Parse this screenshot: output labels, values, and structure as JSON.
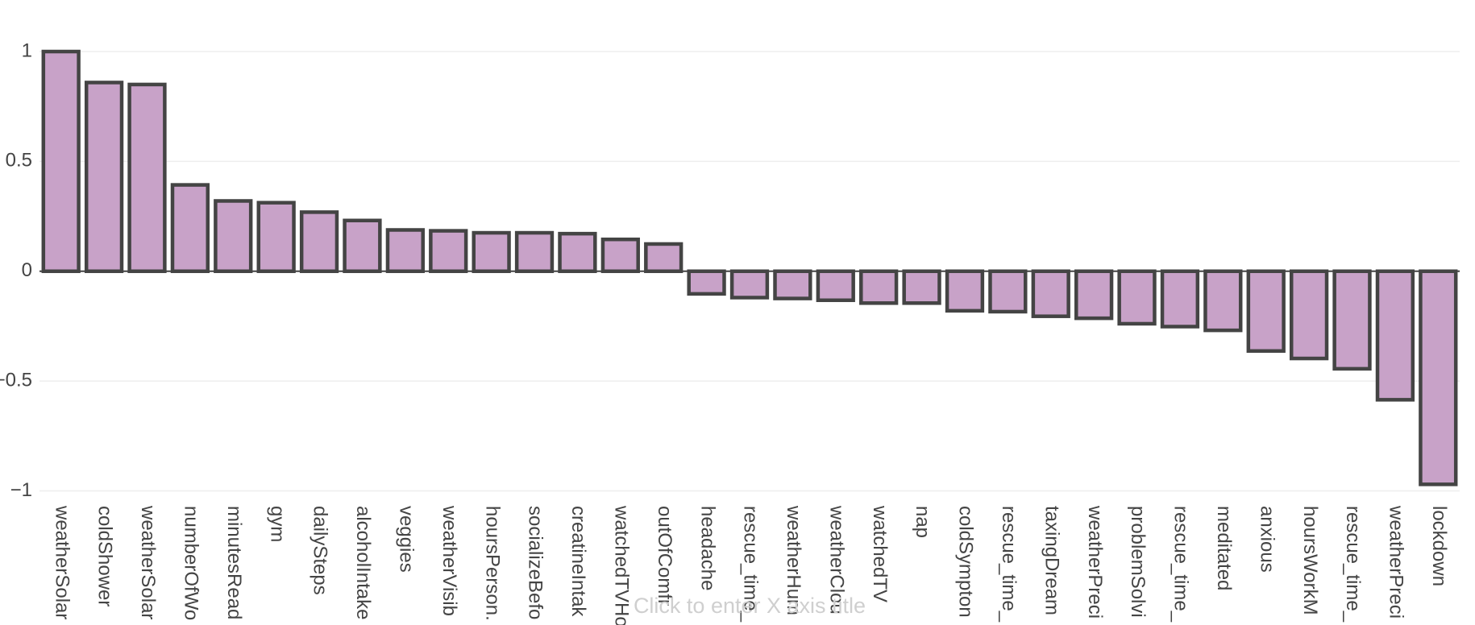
{
  "chart_data": {
    "type": "bar",
    "categories": [
      "weatherSolar",
      "coldShower",
      "weatherSolar",
      "numberOfWo",
      "minutesRead",
      "gym",
      "dailySteps",
      "alcoholIntake",
      "veggies",
      "weatherVisib",
      "hoursPerson.",
      "socializeBefo",
      "creatineIntak",
      "watchedTVHo",
      "outOfComfr",
      "headache",
      "rescue_time_",
      "weatherHum",
      "weatherClou",
      "watchedTV",
      "nap",
      "coldSympton",
      "rescue_time_",
      "taxingDream",
      "weatherPreci",
      "problemSolvi",
      "rescue_time_",
      "meditated",
      "anxious",
      "hoursWorkM",
      "rescue_time_",
      "weatherPreci",
      "lockdown"
    ],
    "values": [
      1.0,
      0.859,
      0.85,
      0.393,
      0.32,
      0.312,
      0.269,
      0.231,
      0.188,
      0.184,
      0.175,
      0.175,
      0.171,
      0.145,
      0.124,
      -0.103,
      -0.12,
      -0.124,
      -0.132,
      -0.145,
      -0.145,
      -0.18,
      -0.184,
      -0.205,
      -0.214,
      -0.239,
      -0.252,
      -0.269,
      -0.363,
      -0.397,
      -0.444,
      -0.585,
      -0.97
    ],
    "color": "#c8a2c8",
    "edge_color": "#444444",
    "ylim": [
      -1.02,
      1
    ],
    "yticks": [
      {
        "value": -1,
        "label": "−1"
      },
      {
        "value": -0.5,
        "label": "−0.5"
      },
      0,
      0.5,
      1
    ],
    "grid": true,
    "x_label_placeholder": "Click to enter X axis title"
  }
}
